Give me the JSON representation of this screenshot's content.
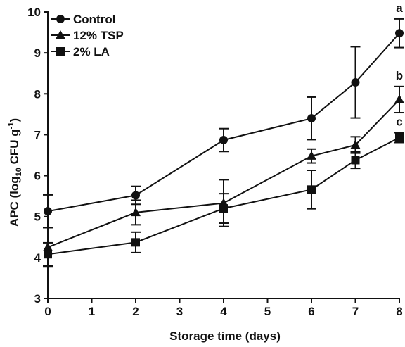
{
  "chart_data": {
    "type": "line",
    "title": "",
    "xlabel": "Storage time (days)",
    "ylabel": {
      "prefix": "APC (log",
      "subscript": "10",
      "middle": " CFU g",
      "superscript": "-1",
      "suffix": ")"
    },
    "xlim": [
      0,
      8
    ],
    "ylim": [
      3,
      10
    ],
    "xticks": [
      0,
      1,
      2,
      3,
      4,
      5,
      6,
      7,
      8
    ],
    "yticks": [
      3,
      4,
      5,
      6,
      7,
      8,
      9,
      10
    ],
    "grid": false,
    "legend_position": "top-left",
    "series": [
      {
        "name": "Control",
        "marker": "circle",
        "x": [
          0,
          2,
          4,
          6,
          7,
          8
        ],
        "y": [
          5.13,
          5.52,
          6.87,
          7.4,
          8.28,
          9.48
        ],
        "err": [
          0.4,
          0.22,
          0.28,
          0.52,
          0.87,
          0.35
        ],
        "sig_label": "a"
      },
      {
        "name": "12% TSP",
        "marker": "triangle",
        "x": [
          0,
          2,
          4,
          6,
          7,
          8
        ],
        "y": [
          4.25,
          5.1,
          5.33,
          6.48,
          6.75,
          7.86
        ],
        "err": [
          0.48,
          0.3,
          0.57,
          0.17,
          0.2,
          0.32
        ],
        "sig_label": "b"
      },
      {
        "name": "2% LA",
        "marker": "square",
        "x": [
          0,
          2,
          4,
          6,
          7,
          8
        ],
        "y": [
          4.08,
          4.37,
          5.2,
          5.66,
          6.38,
          6.93
        ],
        "err": [
          0.28,
          0.25,
          0.36,
          0.47,
          0.2,
          0.12
        ],
        "sig_label": "c"
      }
    ],
    "colors": {
      "line": "#111111",
      "background": "#ffffff"
    }
  }
}
